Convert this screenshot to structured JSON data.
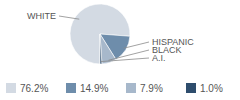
{
  "chart_data": {
    "type": "pie",
    "categories": [
      "WHITE",
      "HISPANIC",
      "BLACK",
      "A.I."
    ],
    "values": [
      76.2,
      14.9,
      7.9,
      1.0
    ],
    "value_labels": [
      "76.2%",
      "14.9%",
      "7.9%",
      "1.0%"
    ],
    "colors": [
      "#d3dae3",
      "#6e8dab",
      "#a7b8cb",
      "#2e4d6d"
    ],
    "legend": "bottom"
  }
}
